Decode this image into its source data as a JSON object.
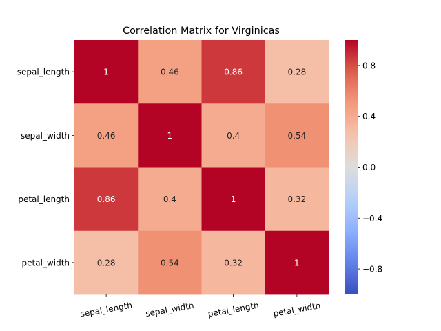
{
  "chart_data": {
    "type": "heatmap",
    "title": "Correlation Matrix for Virginicas",
    "xlabel": "",
    "ylabel": "",
    "x_labels": [
      "sepal_length",
      "sepal_width",
      "petal_length",
      "petal_width"
    ],
    "y_labels": [
      "sepal_length",
      "sepal_width",
      "petal_length",
      "petal_width"
    ],
    "matrix": [
      [
        1,
        0.46,
        0.86,
        0.28
      ],
      [
        0.46,
        1,
        0.4,
        0.54
      ],
      [
        0.86,
        0.4,
        1,
        0.32
      ],
      [
        0.28,
        0.54,
        0.32,
        1
      ]
    ],
    "annotations": [
      [
        "1",
        "0.46",
        "0.86",
        "0.28"
      ],
      [
        "0.46",
        "1",
        "0.4",
        "0.54"
      ],
      [
        "0.86",
        "0.4",
        "1",
        "0.32"
      ],
      [
        "0.28",
        "0.54",
        "0.32",
        "1"
      ]
    ],
    "colormap": "coolwarm",
    "vmin": -1,
    "vmax": 1,
    "colorbar_ticks": [
      0.8,
      0.4,
      0.0,
      -0.4,
      -0.8
    ],
    "colorbar_tick_labels": [
      "0.8",
      "0.4",
      "0.0",
      "−0.4",
      "−0.8"
    ],
    "x_tick_rotation_deg": 10,
    "grid": false,
    "legend": "colorbar-right",
    "colors": {
      "low": "#3b4cc0",
      "mid": "#dddddd",
      "high": "#b40426",
      "text_dark": "#262626",
      "text_light": "#ffffff"
    }
  }
}
